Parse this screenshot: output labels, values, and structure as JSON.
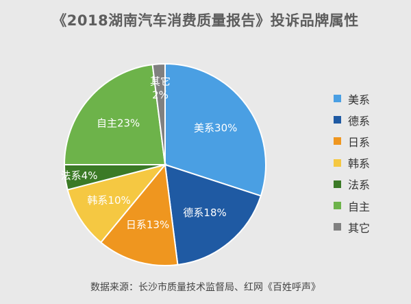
{
  "title": "《2018湖南汽车消费质量报告》投诉品牌属性",
  "source": "数据来源：长沙市质量技术监督局、红网《百姓呼声》",
  "chart_data": {
    "type": "pie",
    "start_angle_deg": 0,
    "direction": "clockwise",
    "slices": [
      {
        "name": "美系",
        "value": 30,
        "label": "美系30%",
        "color": "#4a9fe3"
      },
      {
        "name": "德系",
        "value": 18,
        "label": "德系18%",
        "color": "#1f5aa3"
      },
      {
        "name": "日系",
        "value": 13,
        "label": "日系13%",
        "color": "#ef961f"
      },
      {
        "name": "韩系",
        "value": 10,
        "label": "韩系10%",
        "color": "#f5c842"
      },
      {
        "name": "法系",
        "value": 4,
        "label": "法系4%",
        "color": "#3b7a26"
      },
      {
        "name": "自主",
        "value": 23,
        "label": "自主23%",
        "color": "#6db34a"
      },
      {
        "name": "其它",
        "value": 2,
        "label": "其它\n2%",
        "color": "#808080"
      }
    ],
    "legend_position": "right"
  }
}
